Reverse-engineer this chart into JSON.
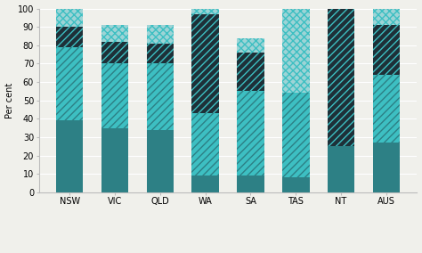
{
  "states": [
    "NSW",
    "VIC",
    "QLD",
    "WA",
    "SA",
    "TAS",
    "NT",
    "AUS"
  ],
  "coal": [
    39,
    35,
    34,
    9,
    9,
    8,
    25,
    27
  ],
  "oil": [
    40,
    35,
    36,
    34,
    46,
    46,
    0,
    37
  ],
  "gas": [
    11,
    12,
    11,
    54,
    21,
    0,
    75,
    27
  ],
  "renewables": [
    10,
    9,
    10,
    3,
    8,
    46,
    0,
    9
  ],
  "color_coal": "#2d8085",
  "color_oil": "#3dbfc2",
  "color_gas": "#1e3038",
  "color_renewables": "#9dd4d6",
  "hatch_oil": "////",
  "hatch_gas": "////",
  "hatch_ren": "xxxx",
  "ylabel": "Per cent",
  "ylim": [
    0,
    100
  ],
  "yticks": [
    0,
    10,
    20,
    30,
    40,
    50,
    60,
    70,
    80,
    90,
    100
  ],
  "bg_color": "#f0f0eb",
  "bar_width": 0.6
}
